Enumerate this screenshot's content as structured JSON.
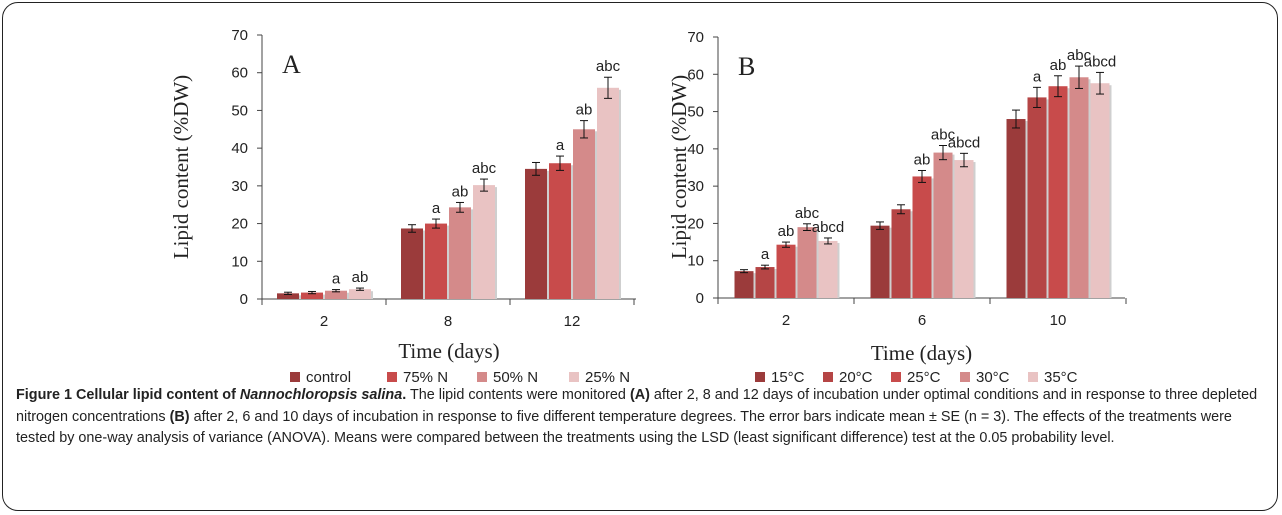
{
  "chart_data": [
    {
      "type": "bar",
      "panel_label": "A",
      "xlabel": "Time (days)",
      "ylabel": "Lipid content (%DW)",
      "ylim": [
        0,
        70
      ],
      "yticks": [
        0,
        10,
        20,
        30,
        40,
        50,
        60,
        70
      ],
      "categories": [
        "2",
        "8",
        "12"
      ],
      "legend_position": "bottom",
      "colors": [
        "#9b3b3b",
        "#c84b4b",
        "#d48a8a",
        "#e9c3c3"
      ],
      "series": [
        {
          "name": "control",
          "values": [
            1.5,
            18.7,
            34.5
          ],
          "errors": [
            0.3,
            1.0,
            1.7
          ],
          "labels": [
            "",
            "",
            ""
          ]
        },
        {
          "name": "75% N",
          "values": [
            1.7,
            20.0,
            36.0
          ],
          "errors": [
            0.3,
            1.2,
            1.9
          ],
          "labels": [
            "",
            "a",
            "a"
          ]
        },
        {
          "name": "50% N",
          "values": [
            2.2,
            24.3,
            45.0
          ],
          "errors": [
            0.3,
            1.3,
            2.3
          ],
          "labels": [
            "a",
            "ab",
            "ab"
          ]
        },
        {
          "name": "25% N",
          "values": [
            2.6,
            30.2,
            56.0
          ],
          "errors": [
            0.3,
            1.6,
            2.8
          ],
          "labels": [
            "ab",
            "abc",
            "abc"
          ]
        }
      ]
    },
    {
      "type": "bar",
      "panel_label": "B",
      "xlabel": "Time (days)",
      "ylabel": "Lipid content (%DW)",
      "ylim": [
        0,
        70
      ],
      "yticks": [
        0,
        10,
        20,
        30,
        40,
        50,
        60,
        70
      ],
      "categories": [
        "2",
        "6",
        "10"
      ],
      "legend_position": "bottom",
      "colors": [
        "#9b3b3b",
        "#b54545",
        "#c84b4b",
        "#d48a8a",
        "#e9c3c3"
      ],
      "series": [
        {
          "name": "15°C",
          "values": [
            7.2,
            19.4,
            48.0
          ],
          "errors": [
            0.4,
            1.0,
            2.4
          ],
          "labels": [
            "",
            "",
            ""
          ]
        },
        {
          "name": "20°C",
          "values": [
            8.3,
            23.8,
            53.8
          ],
          "errors": [
            0.5,
            1.2,
            2.7
          ],
          "labels": [
            "a",
            "",
            "a"
          ]
        },
        {
          "name": "25°C",
          "values": [
            14.3,
            32.6,
            56.8
          ],
          "errors": [
            0.7,
            1.6,
            2.8
          ],
          "labels": [
            "ab",
            "ab",
            "ab"
          ]
        },
        {
          "name": "30°C",
          "values": [
            19.0,
            39.0,
            59.2
          ],
          "errors": [
            0.9,
            1.9,
            3.0
          ],
          "labels": [
            "abc",
            "abc",
            "abc"
          ]
        },
        {
          "name": "35°C",
          "values": [
            15.3,
            37.0,
            57.6
          ],
          "errors": [
            0.8,
            1.8,
            2.9
          ],
          "labels": [
            "abcd",
            "abcd",
            "abcd"
          ]
        }
      ]
    }
  ],
  "caption": {
    "title_prefix": "Figure 1 Cellular lipid content of ",
    "species": "Nannochloropsis salina",
    "title_suffix": ".",
    "text_1": " The lipid contents were monitored ",
    "ref_a": "(A)",
    "text_2": " after 2, 8 and 12 days of incubation under optimal conditions and in response to three depleted nitrogen concentrations ",
    "ref_b": "(B)",
    "text_3": " after 2, 6 and 10 days of incubation in response to five different temperature degrees. The error bars indicate mean ± SE (n = 3). The effects of the treatments were tested by one-way analysis of variance (ANOVA). Means were compared between the treatments using the LSD (least significant difference) test at the 0.05 probability level."
  }
}
